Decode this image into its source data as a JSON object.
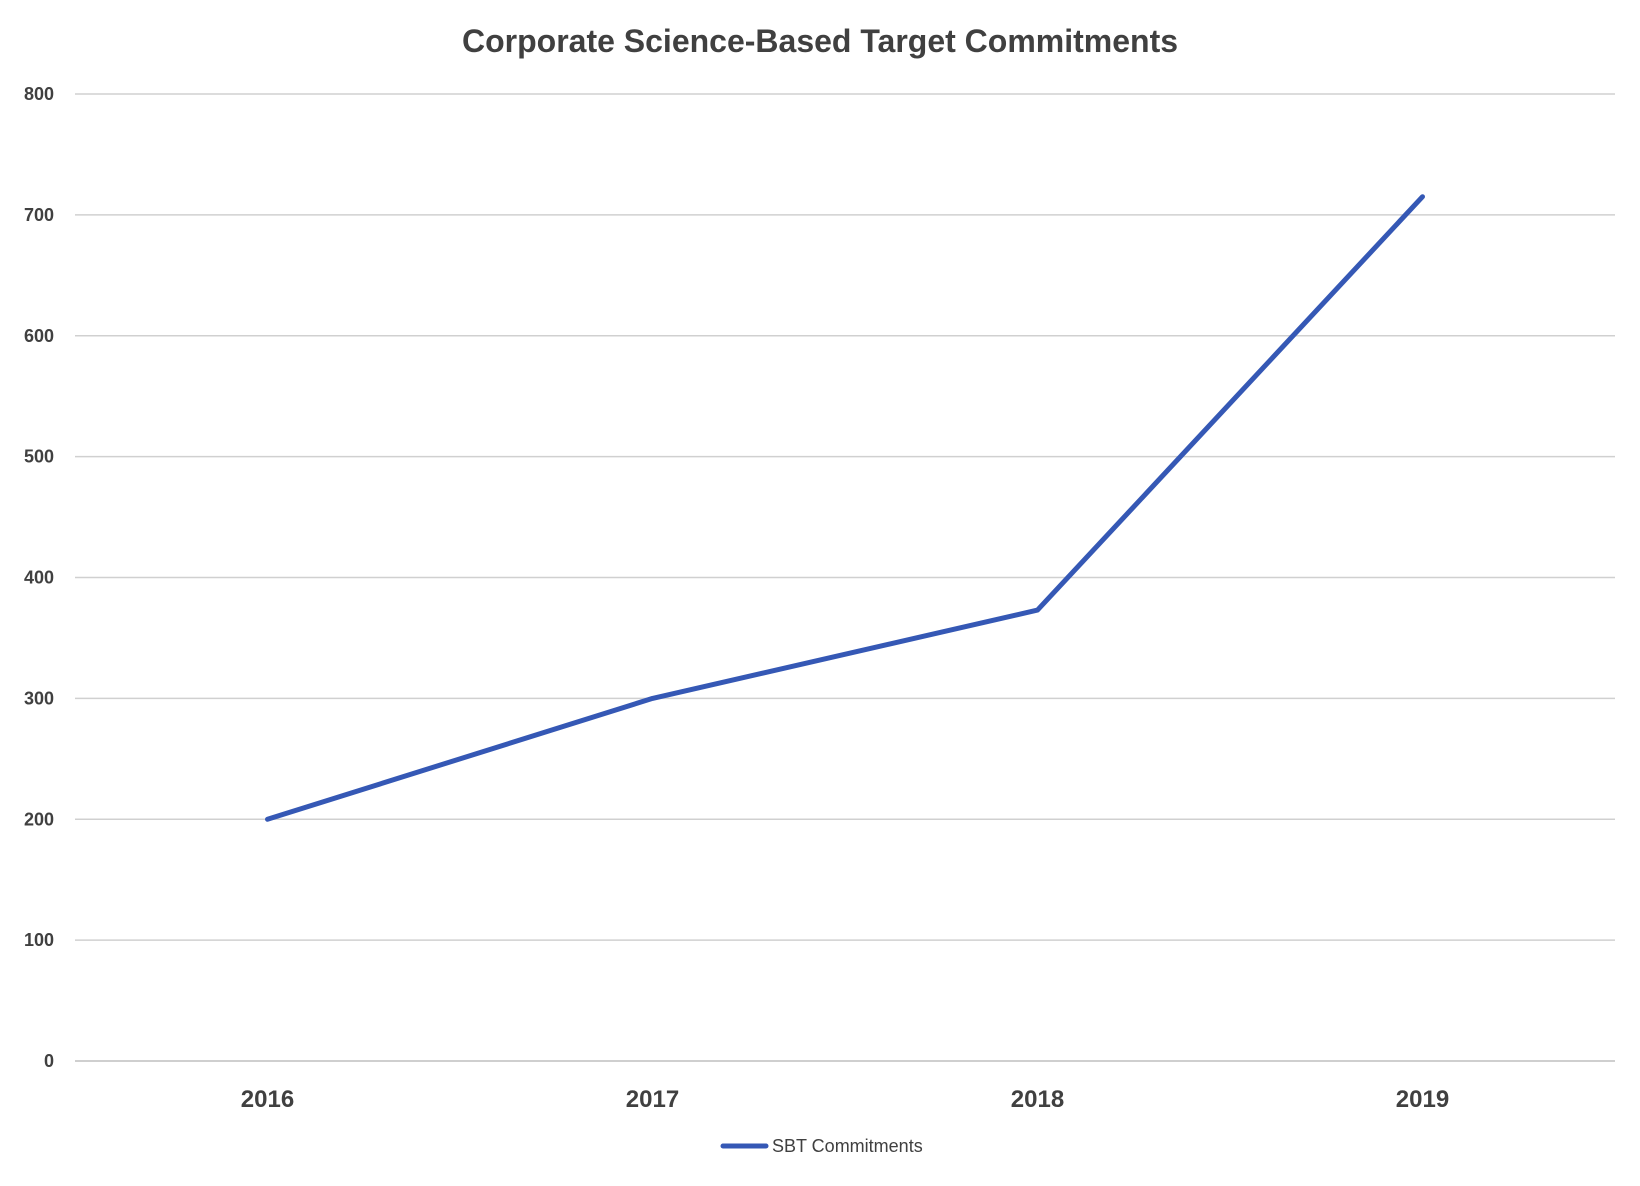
{
  "chart_data": {
    "type": "line",
    "title": "Corporate Science-Based Target Commitments",
    "xlabel": "",
    "ylabel": "",
    "categories": [
      "2016",
      "2017",
      "2018",
      "2019"
    ],
    "series": [
      {
        "name": "SBT Commitments",
        "values": [
          200,
          300,
          373,
          715
        ],
        "color": "#3558B5"
      }
    ],
    "ylim": [
      0,
      800
    ],
    "yticks": [
      0,
      100,
      200,
      300,
      400,
      500,
      600,
      700,
      800
    ],
    "grid": true,
    "legend_position": "bottom"
  }
}
